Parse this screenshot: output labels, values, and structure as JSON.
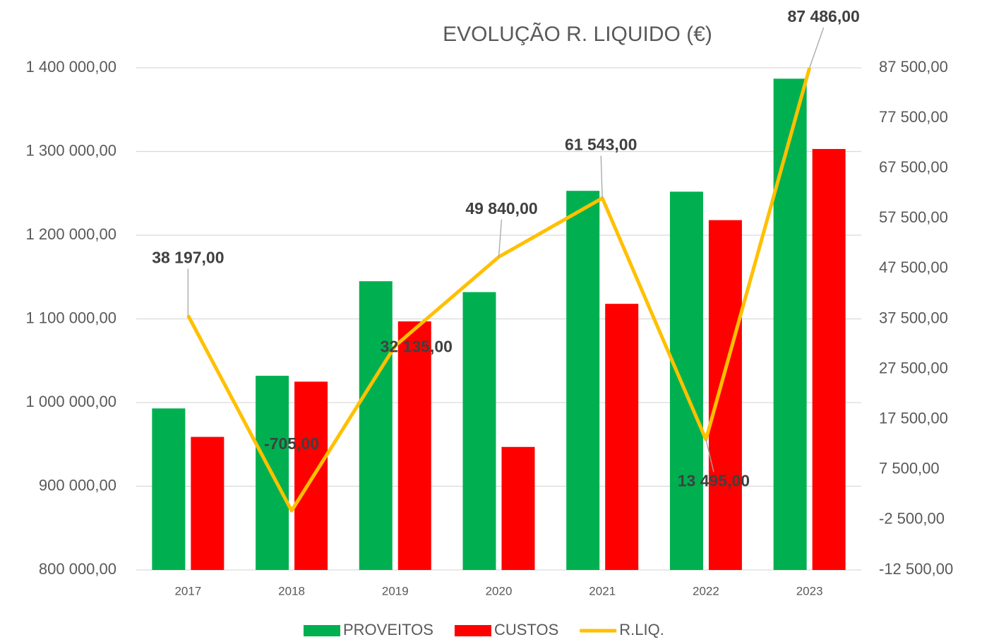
{
  "chart_data": {
    "type": "bar_line",
    "title": "EVOLUÇÃO R. LIQUIDO (€)",
    "categories": [
      "2017",
      "2018",
      "2019",
      "2020",
      "2021",
      "2022",
      "2023"
    ],
    "series": [
      {
        "name": "PROVEITOS",
        "color": "#00b050",
        "type": "bar",
        "values": [
          993000,
          1032000,
          1145000,
          1132000,
          1253000,
          1252000,
          1387000
        ]
      },
      {
        "name": "CUSTOS",
        "color": "#ff0000",
        "type": "bar",
        "values": [
          959000,
          1025000,
          1097000,
          947000,
          1118000,
          1218000,
          1303000
        ]
      },
      {
        "name": "R.LIQ.",
        "color": "#ffc000",
        "type": "line",
        "axis": "y2",
        "values": [
          38197,
          -705,
          32135,
          49840,
          61543,
          13495,
          87486
        ],
        "value_labels": [
          "38 197,00",
          "-705,00",
          "32 135,00",
          "49 840,00",
          "61 543,00",
          "13 495,00",
          "87 486,00"
        ]
      }
    ],
    "ylim": [
      800000,
      1400000
    ],
    "yticks": [
      {
        "value": 800000,
        "label": "800 000,00"
      },
      {
        "value": 900000,
        "label": "900 000,00"
      },
      {
        "value": 1000000,
        "label": "1 000 000,00"
      },
      {
        "value": 1100000,
        "label": "1 100 000,00"
      },
      {
        "value": 1200000,
        "label": "1 200 000,00"
      },
      {
        "value": 1300000,
        "label": "1 300 000,00"
      },
      {
        "value": 1400000,
        "label": "1 400 000,00"
      }
    ],
    "y2lim": [
      -12500,
      87500
    ],
    "y2ticks": [
      {
        "value": -12500,
        "label": "-12 500,00"
      },
      {
        "value": -2500,
        "label": "-2 500,00"
      },
      {
        "value": 7500,
        "label": "7 500,00"
      },
      {
        "value": 17500,
        "label": "17 500,00"
      },
      {
        "value": 27500,
        "label": "27 500,00"
      },
      {
        "value": 37500,
        "label": "37 500,00"
      },
      {
        "value": 47500,
        "label": "47 500,00"
      },
      {
        "value": 57500,
        "label": "57 500,00"
      },
      {
        "value": 67500,
        "label": "67 500,00"
      },
      {
        "value": 77500,
        "label": "77 500,00"
      },
      {
        "value": 87500,
        "label": "87 500,00"
      }
    ],
    "grid": true,
    "legend": "bottom"
  }
}
